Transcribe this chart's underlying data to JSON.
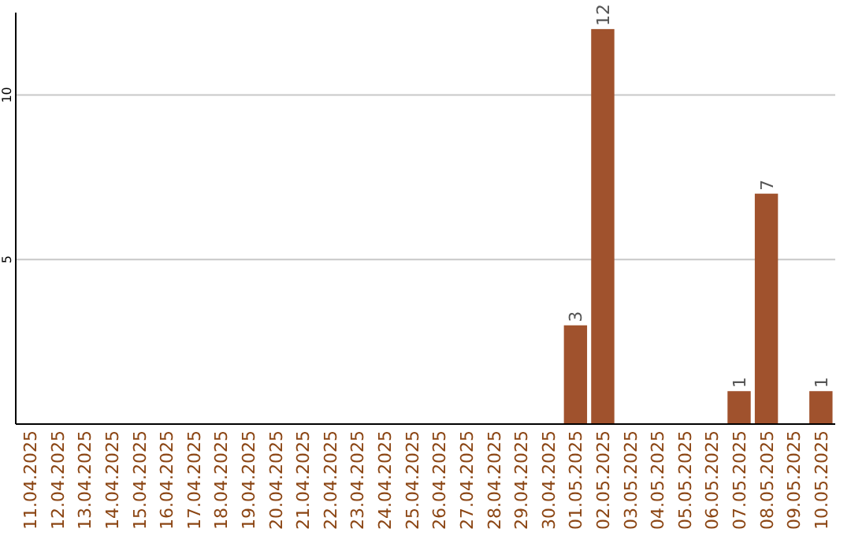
{
  "chart_data": {
    "type": "bar",
    "categories": [
      "11.04.2025",
      "12.04.2025",
      "13.04.2025",
      "14.04.2025",
      "15.04.2025",
      "16.04.2025",
      "17.04.2025",
      "18.04.2025",
      "19.04.2025",
      "20.04.2025",
      "21.04.2025",
      "22.04.2025",
      "23.04.2025",
      "24.04.2025",
      "25.04.2025",
      "26.04.2025",
      "27.04.2025",
      "28.04.2025",
      "29.04.2025",
      "30.04.2025",
      "01.05.2025",
      "02.05.2025",
      "03.05.2025",
      "04.05.2025",
      "05.05.2025",
      "06.05.2025",
      "07.05.2025",
      "08.05.2025",
      "09.05.2025",
      "10.05.2025"
    ],
    "values": [
      0,
      0,
      0,
      0,
      0,
      0,
      0,
      0,
      0,
      0,
      0,
      0,
      0,
      0,
      0,
      0,
      0,
      0,
      0,
      0,
      3,
      12,
      0,
      0,
      0,
      0,
      1,
      7,
      0,
      1
    ],
    "value_labels": [
      null,
      null,
      null,
      null,
      null,
      null,
      null,
      null,
      null,
      null,
      null,
      null,
      null,
      null,
      null,
      null,
      null,
      null,
      null,
      null,
      "3",
      "12",
      null,
      null,
      null,
      null,
      "1",
      "7",
      null,
      "1"
    ],
    "color": "#a0522d",
    "ylim": [
      0,
      12.5
    ],
    "yticks": [
      5,
      10
    ],
    "grid": "y"
  }
}
